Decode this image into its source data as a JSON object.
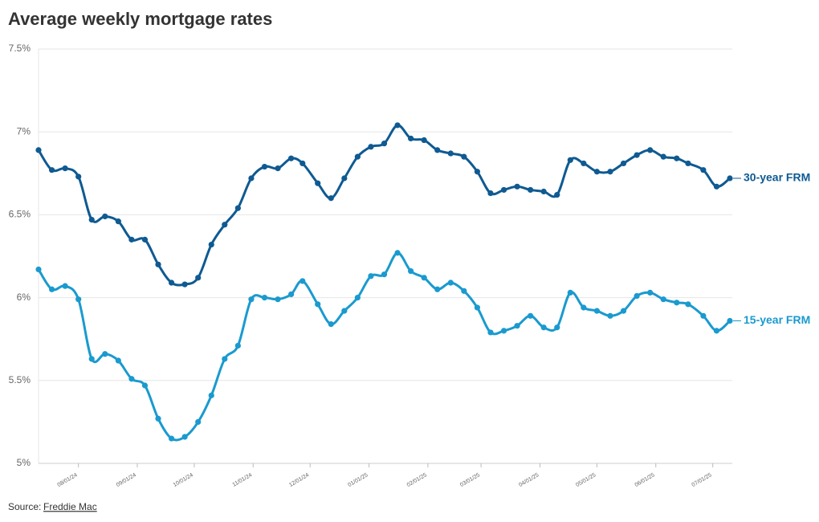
{
  "chart_data": {
    "type": "line",
    "title": "Average weekly mortgage rates",
    "source_label": "Source:",
    "source_link": "Freddie Mac",
    "x": [
      "2024-07-11",
      "2024-07-18",
      "2024-07-25",
      "2024-08-01",
      "2024-08-08",
      "2024-08-15",
      "2024-08-22",
      "2024-08-29",
      "2024-09-05",
      "2024-09-12",
      "2024-09-19",
      "2024-09-26",
      "2024-10-03",
      "2024-10-10",
      "2024-10-17",
      "2024-10-24",
      "2024-10-31",
      "2024-11-07",
      "2024-11-14",
      "2024-11-21",
      "2024-11-27",
      "2024-12-05",
      "2024-12-12",
      "2024-12-19",
      "2024-12-26",
      "2025-01-02",
      "2025-01-09",
      "2025-01-16",
      "2025-01-23",
      "2025-01-30",
      "2025-02-06",
      "2025-02-13",
      "2025-02-20",
      "2025-02-27",
      "2025-03-06",
      "2025-03-13",
      "2025-03-20",
      "2025-03-27",
      "2025-04-03",
      "2025-04-10",
      "2025-04-17",
      "2025-04-24",
      "2025-05-01",
      "2025-05-08",
      "2025-05-15",
      "2025-05-22",
      "2025-05-29",
      "2025-06-05",
      "2025-06-12",
      "2025-06-18",
      "2025-06-26",
      "2025-07-03",
      "2025-07-10"
    ],
    "series": [
      {
        "name": "30-year FRM",
        "color": "#0f5a92",
        "values": [
          6.89,
          6.77,
          6.78,
          6.73,
          6.47,
          6.49,
          6.46,
          6.35,
          6.35,
          6.2,
          6.09,
          6.08,
          6.12,
          6.32,
          6.44,
          6.54,
          6.72,
          6.79,
          6.78,
          6.84,
          6.81,
          6.69,
          6.6,
          6.72,
          6.85,
          6.91,
          6.93,
          7.04,
          6.96,
          6.95,
          6.89,
          6.87,
          6.85,
          6.76,
          6.63,
          6.65,
          6.67,
          6.65,
          6.64,
          6.62,
          6.83,
          6.81,
          6.76,
          6.76,
          6.81,
          6.86,
          6.89,
          6.85,
          6.84,
          6.81,
          6.77,
          6.67,
          6.72
        ]
      },
      {
        "name": "15-year FRM",
        "color": "#1a9acf",
        "values": [
          6.17,
          6.05,
          6.07,
          5.99,
          5.63,
          5.66,
          5.62,
          5.51,
          5.47,
          5.27,
          5.15,
          5.16,
          5.25,
          5.41,
          5.63,
          5.71,
          5.99,
          6.0,
          5.99,
          6.02,
          6.1,
          5.96,
          5.84,
          5.92,
          6.0,
          6.13,
          6.14,
          6.27,
          6.16,
          6.12,
          6.05,
          6.09,
          6.04,
          5.94,
          5.79,
          5.8,
          5.83,
          5.89,
          5.82,
          5.82,
          6.03,
          5.94,
          5.92,
          5.89,
          5.92,
          6.01,
          6.03,
          5.99,
          5.97,
          5.96,
          5.89,
          5.8,
          5.86
        ]
      }
    ],
    "xlim": [
      "2024-07-11",
      "2025-07-10"
    ],
    "xticks": [
      {
        "value": "2024-08-01",
        "label": "08/01/24"
      },
      {
        "value": "2024-09-01",
        "label": "09/01/24"
      },
      {
        "value": "2024-10-01",
        "label": "10/01/24"
      },
      {
        "value": "2024-11-01",
        "label": "11/01/24"
      },
      {
        "value": "2024-12-01",
        "label": "12/01/24"
      },
      {
        "value": "2025-01-01",
        "label": "01/01/25"
      },
      {
        "value": "2025-02-01",
        "label": "02/01/25"
      },
      {
        "value": "2025-03-01",
        "label": "03/01/25"
      },
      {
        "value": "2025-04-01",
        "label": "04/01/25"
      },
      {
        "value": "2025-05-01",
        "label": "05/01/25"
      },
      {
        "value": "2025-06-01",
        "label": "06/01/25"
      },
      {
        "value": "2025-07-01",
        "label": "07/01/25"
      }
    ],
    "ylim": [
      5,
      7.5
    ],
    "yticks": [
      {
        "value": 5,
        "label": "5%"
      },
      {
        "value": 5.5,
        "label": "5.5%"
      },
      {
        "value": 6,
        "label": "6%"
      },
      {
        "value": 6.5,
        "label": "6.5%"
      },
      {
        "value": 7,
        "label": "7%"
      },
      {
        "value": 7.5,
        "label": "7.5%"
      }
    ],
    "grid": true
  }
}
